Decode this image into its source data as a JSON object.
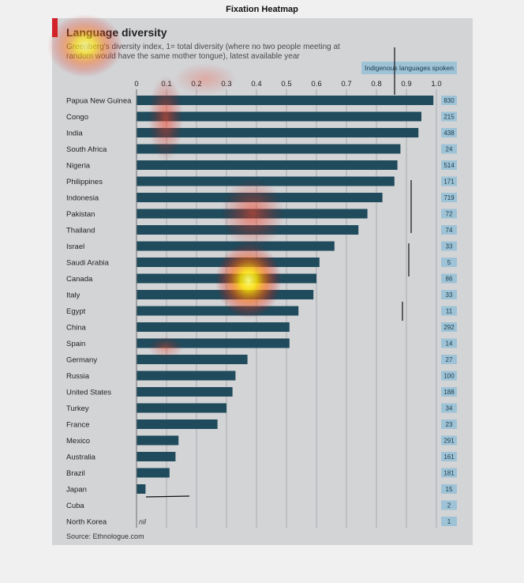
{
  "figure_title": "Fixation Heatmap",
  "chart_data": {
    "type": "bar",
    "orientation": "horizontal",
    "title": "Language diversity",
    "subtitle": "Greenberg's diversity index, 1= total diversity (where no two people meeting at random would have the same mother tongue), latest available year",
    "source": "Source: Ethnologue.com",
    "xlim": [
      0,
      1.0
    ],
    "xticks": [
      "0",
      "0.1",
      "0.2",
      "0.3",
      "0.4",
      "0.5",
      "0.6",
      "0.7",
      "0.8",
      "0.9",
      "1.0"
    ],
    "grid": true,
    "categories": [
      "Papua New Guinea",
      "Congo",
      "India",
      "South Africa",
      "Nigeria",
      "Philippines",
      "Indonesia",
      "Pakistan",
      "Thailand",
      "Israel",
      "Saudi Arabia",
      "Canada",
      "Italy",
      "Egypt",
      "China",
      "Spain",
      "Germany",
      "Russia",
      "United States",
      "Turkey",
      "France",
      "Mexico",
      "Australia",
      "Brazil",
      "Japan",
      "Cuba",
      "North Korea"
    ],
    "values": [
      0.99,
      0.95,
      0.94,
      0.88,
      0.87,
      0.86,
      0.82,
      0.77,
      0.74,
      0.66,
      0.61,
      0.6,
      0.59,
      0.54,
      0.51,
      0.51,
      0.37,
      0.33,
      0.32,
      0.3,
      0.27,
      0.14,
      0.13,
      0.11,
      0.03,
      0.0,
      0.0
    ],
    "value_labels": {
      "North Korea": "nil"
    },
    "badge_header": "Indigenous languages spoken",
    "badges": [
      "830",
      "215",
      "438",
      "24",
      "514",
      "171",
      "719",
      "72",
      "74",
      "33",
      "5",
      "86",
      "33",
      "11",
      "292",
      "14",
      "27",
      "100",
      "188",
      "34",
      "23",
      "291",
      "161",
      "181",
      "15",
      "2",
      "1"
    ],
    "colors": {
      "bar": "#1f4b5c",
      "badge": "#9fc3d6",
      "accent": "#d2232a",
      "panel": "#d3d4d6"
    }
  }
}
